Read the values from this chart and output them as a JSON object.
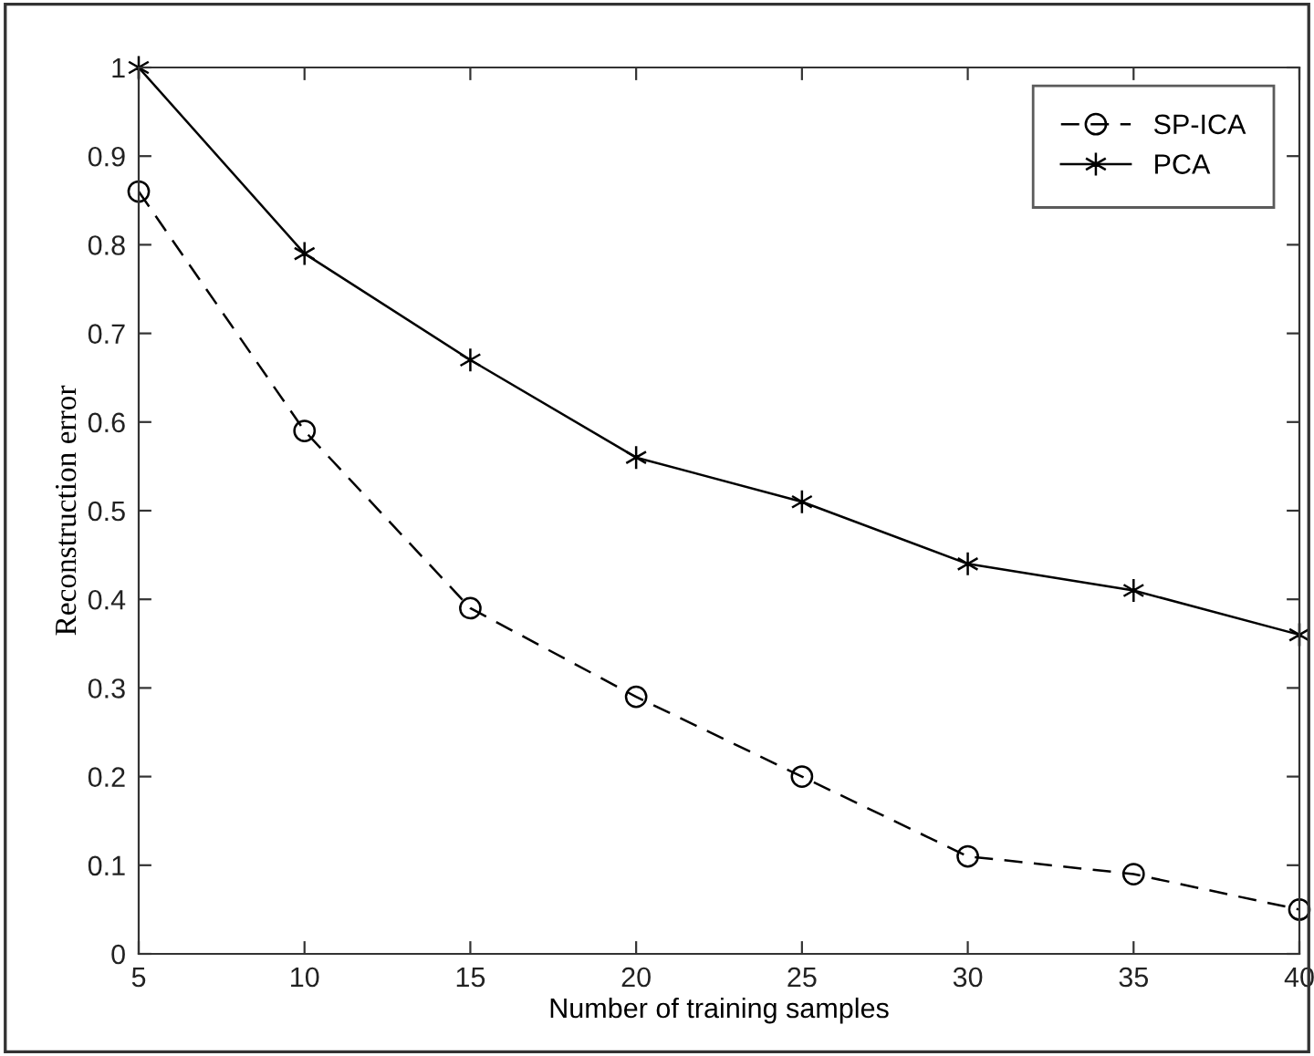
{
  "chart_data": {
    "type": "line",
    "xlabel": "Number of training samples",
    "ylabel": "Reconstruction error",
    "x": [
      5,
      10,
      15,
      20,
      25,
      30,
      35,
      40
    ],
    "series": [
      {
        "name": "SP-ICA",
        "color": "#000000",
        "values": [
          0.86,
          0.59,
          0.39,
          0.29,
          0.2,
          0.11,
          0.09,
          0.05
        ],
        "marker": "circle",
        "line_style": "dashed"
      },
      {
        "name": "PCA",
        "color": "#000000",
        "values": [
          1,
          0.79,
          0.67,
          0.56,
          0.51,
          0.44,
          0.41,
          0.36
        ],
        "marker": "cross",
        "line_style": "solid"
      }
    ],
    "xlim": [
      5,
      40
    ],
    "xticks": [
      5,
      10,
      15,
      20,
      25,
      30,
      35,
      40
    ],
    "ylim": [
      0,
      1
    ],
    "yticks": [
      0,
      0.1,
      0.2,
      0.3,
      0.4,
      0.5,
      0.6,
      0.7,
      0.8,
      0.9,
      1
    ],
    "grid": false,
    "legend": "top right"
  }
}
